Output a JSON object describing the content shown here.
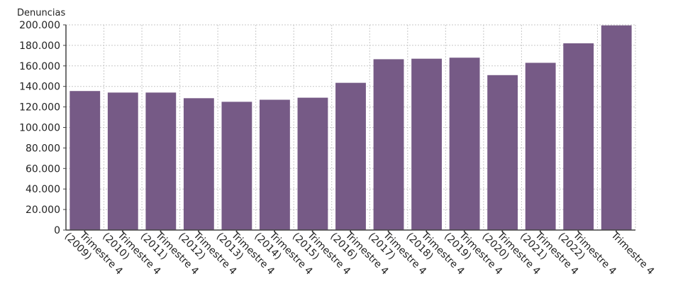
{
  "chart_data": {
    "type": "bar",
    "title": "",
    "ylabel": "Denuncias",
    "xlabel": "",
    "ylim": [
      0,
      200000
    ],
    "ytick_step": 20000,
    "yticks": [
      "0",
      "20.000",
      "40.000",
      "60.000",
      "80.000",
      "100.000",
      "120.000",
      "140.000",
      "160.000",
      "180.000",
      "200.000"
    ],
    "grid": true,
    "bar_color": "#765a86",
    "categories": [
      [
        "Trimestre 4",
        "(2009)"
      ],
      [
        "Trimestre 4",
        "(2010)"
      ],
      [
        "Trimestre 4",
        "(2011)"
      ],
      [
        "Trimestre 4",
        "(2012)"
      ],
      [
        "Trimestre 4",
        "(2013)"
      ],
      [
        "Trimestre 4",
        "(2014)"
      ],
      [
        "Trimestre 4",
        "(2015)"
      ],
      [
        "Trimestre 4",
        "(2016)"
      ],
      [
        "Trimestre 4",
        "(2017)"
      ],
      [
        "Trimestre 4",
        "(2018)"
      ],
      [
        "Trimestre 4",
        "(2019)"
      ],
      [
        "Trimestre 4",
        "(2020)"
      ],
      [
        "Trimestre 4",
        "(2021)"
      ],
      [
        "Trimestre 4",
        "(2022)"
      ],
      [
        "Trimestre 4"
      ]
    ],
    "values": [
      135500,
      134000,
      134000,
      128500,
      125000,
      127000,
      129000,
      143500,
      166500,
      167000,
      168000,
      151000,
      163000,
      182000,
      199500
    ]
  }
}
